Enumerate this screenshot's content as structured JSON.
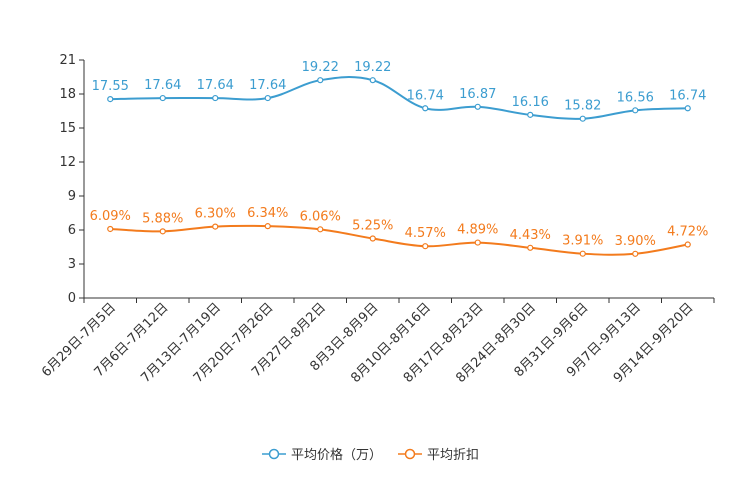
{
  "chart_data": {
    "type": "line",
    "categories": [
      "6月29日-7月5日",
      "7月6日-7月12日",
      "7月13日-7月19日",
      "7月20日-7月26日",
      "7月27日-8月2日",
      "8月3日-8月9日",
      "8月10日-8月16日",
      "8月17日-8月23日",
      "8月24日-8月30日",
      "8月31日-9月6日",
      "9月7日-9月13日",
      "9月14日-9月20日"
    ],
    "ylim": [
      0,
      21
    ],
    "yticks": [
      0,
      3,
      6,
      9,
      12,
      15,
      18,
      21
    ],
    "series": [
      {
        "name": "平均价格（万）",
        "color": "#3c9dd0",
        "values": [
          17.55,
          17.64,
          17.64,
          17.64,
          19.22,
          19.22,
          16.74,
          16.87,
          16.16,
          15.82,
          16.56,
          16.74
        ],
        "labels": [
          "17.55",
          "17.64",
          "17.64",
          "17.64",
          "19.22",
          "19.22",
          "16.74",
          "16.87",
          "16.16",
          "15.82",
          "16.56",
          "16.74"
        ]
      },
      {
        "name": "平均折扣",
        "color": "#f37b1d",
        "values": [
          6.09,
          5.88,
          6.3,
          6.34,
          6.06,
          5.25,
          4.57,
          4.89,
          4.43,
          3.91,
          3.9,
          4.72
        ],
        "labels": [
          "6.09%",
          "5.88%",
          "6.30%",
          "6.34%",
          "6.06%",
          "5.25%",
          "4.57%",
          "4.89%",
          "4.43%",
          "3.91%",
          "3.90%",
          "4.72%"
        ]
      }
    ],
    "legend_position": "bottom-center",
    "grid": false
  }
}
